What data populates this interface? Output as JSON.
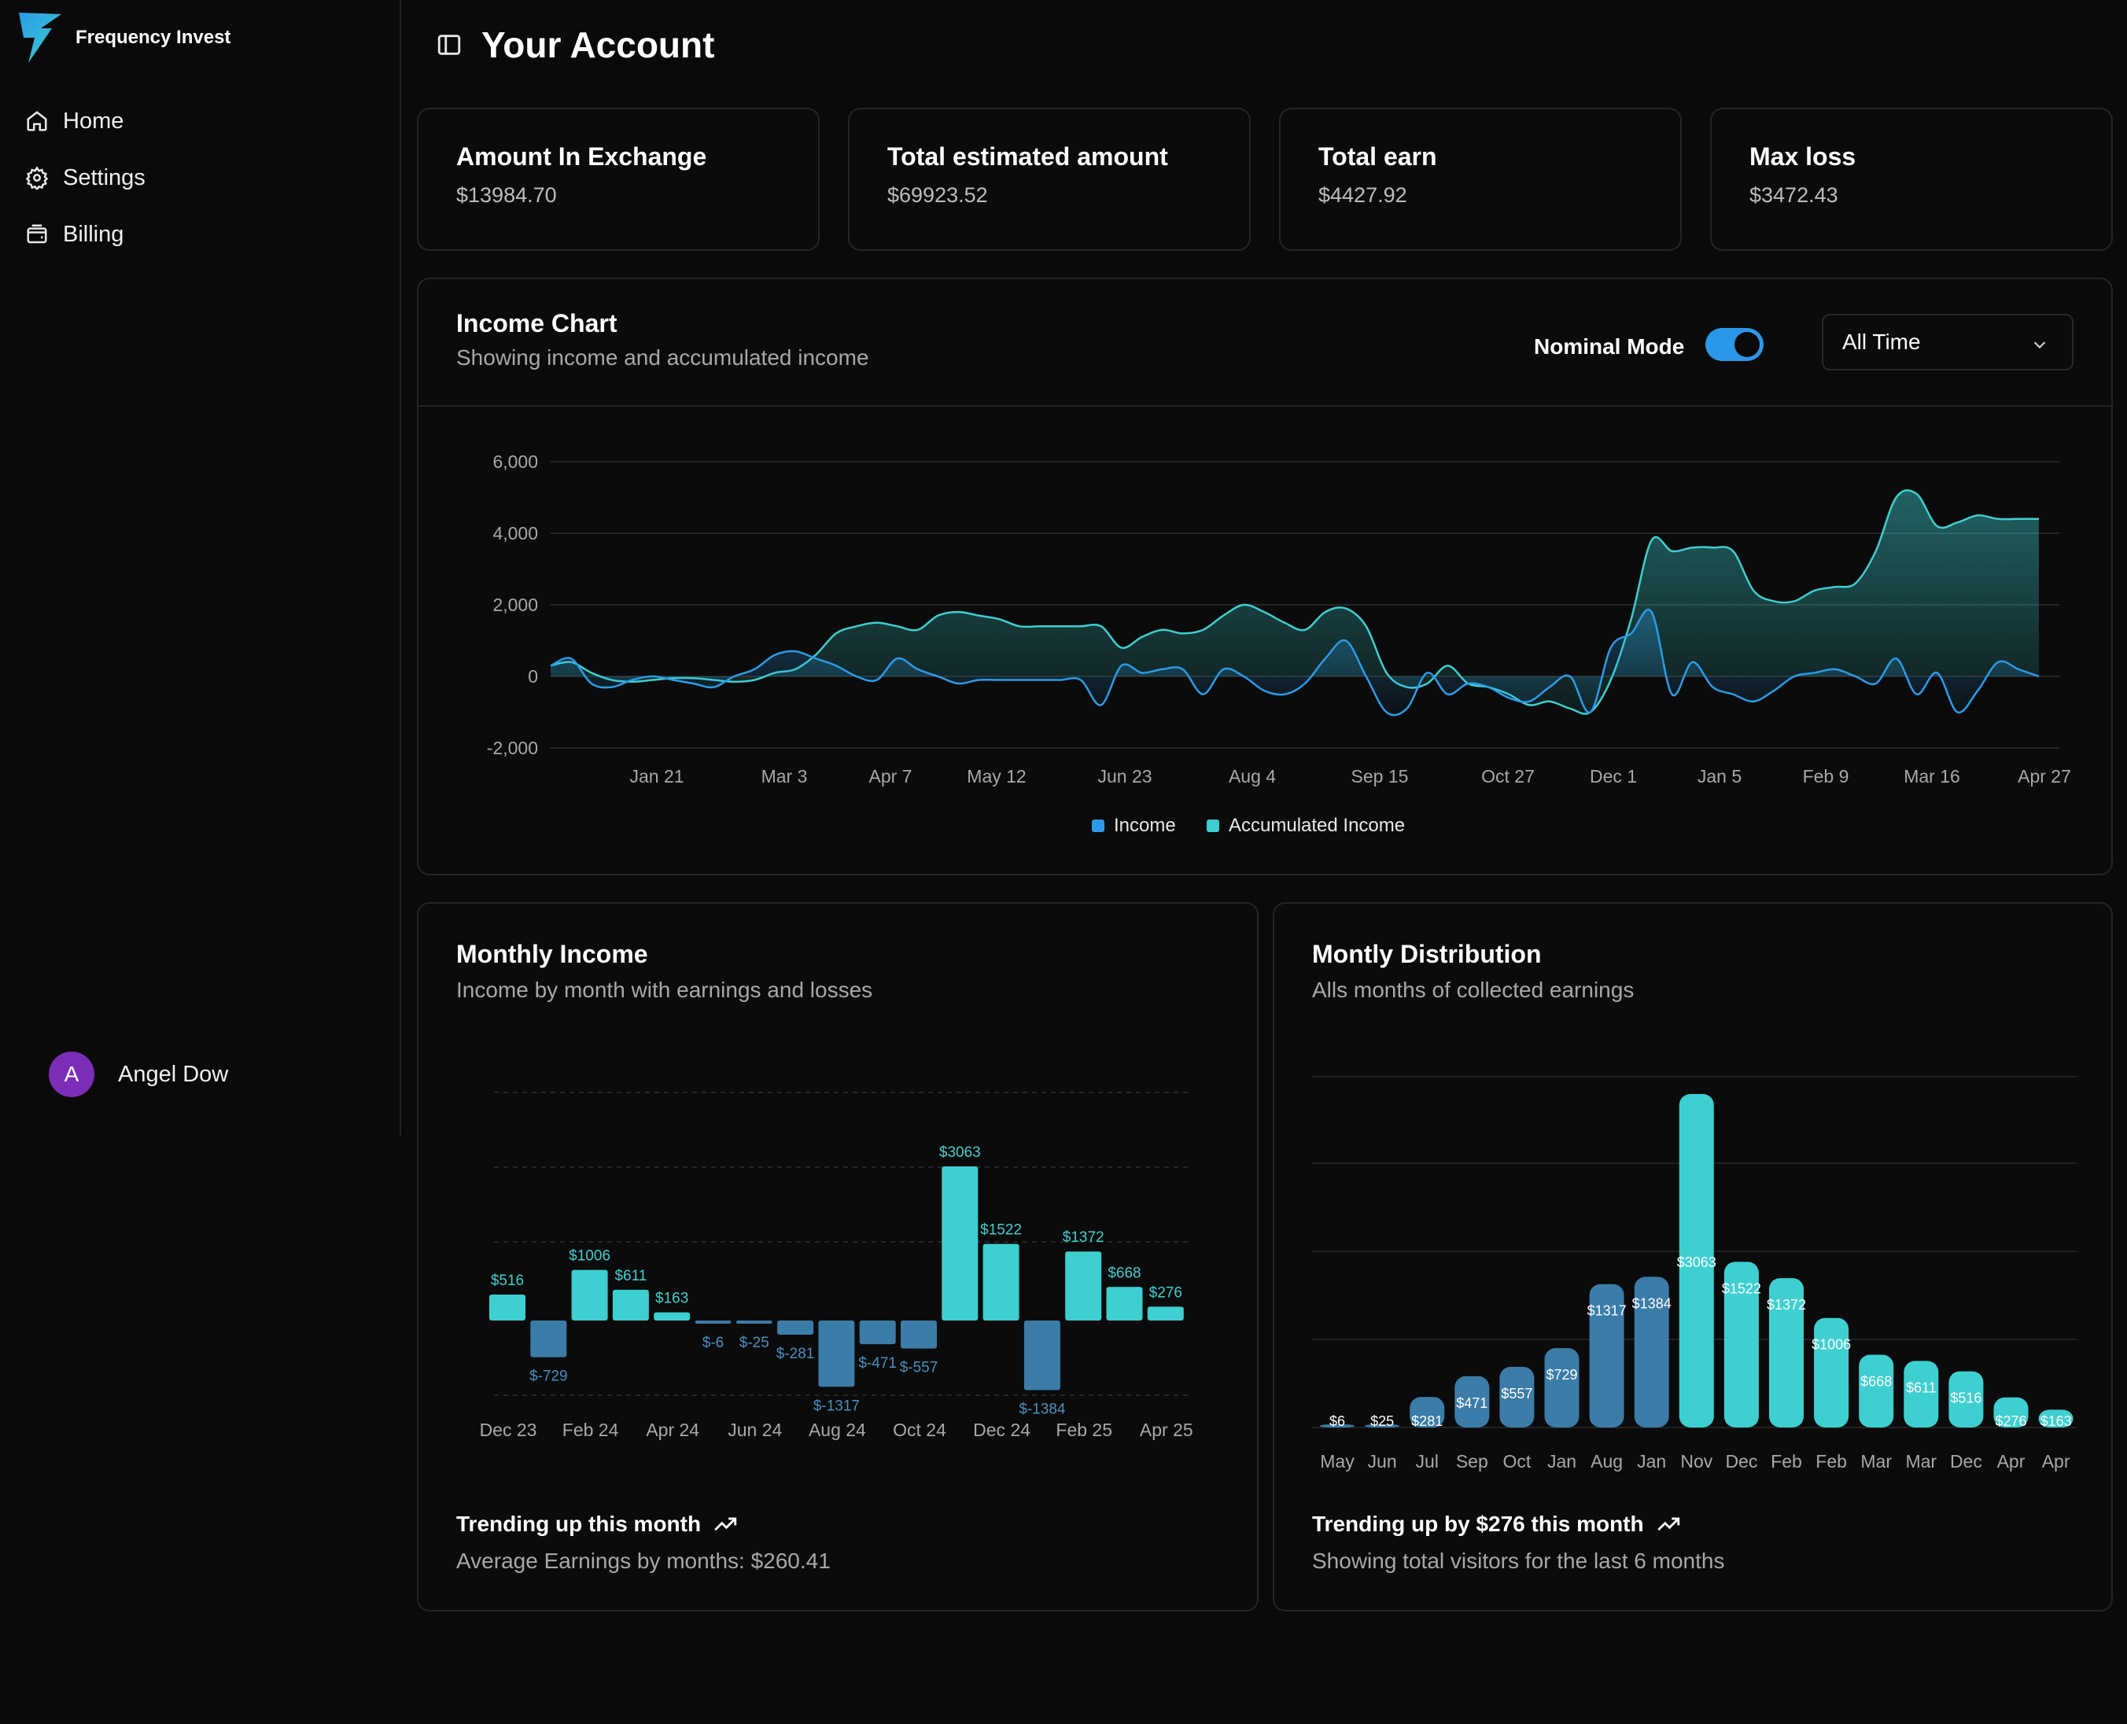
{
  "app": {
    "name": "Frequency Invest"
  },
  "nav": {
    "items": [
      {
        "label": "Home"
      },
      {
        "label": "Settings"
      },
      {
        "label": "Billing"
      }
    ]
  },
  "user": {
    "initial": "A",
    "name": "Angel Dow"
  },
  "page": {
    "title": "Your Account"
  },
  "stats": [
    {
      "title": "Amount In Exchange",
      "value": "$13984.70"
    },
    {
      "title": "Total estimated amount",
      "value": "$69923.52"
    },
    {
      "title": "Total earn",
      "value": "$4427.92"
    },
    {
      "title": "Max loss",
      "value": "$3472.43"
    }
  ],
  "income_card": {
    "title": "Income Chart",
    "subtitle": "Showing income and accumulated income",
    "toggle_label": "Nominal Mode",
    "toggle_on": true,
    "range_select": "All Time"
  },
  "monthly_card": {
    "title": "Monthly Income",
    "subtitle": "Income by month with earnings and losses",
    "trend": "Trending up this month",
    "footer": "Average Earnings by months: $260.41"
  },
  "dist_card": {
    "title": "Montly Distribution",
    "subtitle": "Alls months of collected earnings",
    "trend": "Trending up by $276 this month",
    "footer": "Showing total visitors for the last 6 months"
  },
  "colors": {
    "income": "#2b9be8",
    "accumulated": "#3ecfd0",
    "positive": "#3ecfd0",
    "negative": "#3b7ca8"
  },
  "chart_data": [
    {
      "type": "area",
      "title": "Income Chart",
      "ylim": [
        -2000,
        6000
      ],
      "yticks": [
        6000,
        4000,
        2000,
        0,
        -2000
      ],
      "ytick_labels": [
        "6,000",
        "4,000",
        "2,000",
        "0",
        "-2,000"
      ],
      "xtick_labels": [
        "Jan 21",
        "Mar 3",
        "Apr 7",
        "May 12",
        "Jun 23",
        "Aug 4",
        "Sep 15",
        "Oct 27",
        "Dec 1",
        "Jan 5",
        "Feb 9",
        "Mar 16",
        "Apr 27"
      ],
      "legend": [
        "Income",
        "Accumulated Income"
      ],
      "series": [
        {
          "name": "Accumulated Income",
          "values": [
            300,
            400,
            100,
            -100,
            -150,
            -100,
            -50,
            -50,
            -100,
            -150,
            -100,
            100,
            200,
            600,
            1200,
            1400,
            1500,
            1400,
            1300,
            1700,
            1800,
            1700,
            1600,
            1400,
            1400,
            1400,
            1400,
            1400,
            800,
            1100,
            1300,
            1200,
            1300,
            1700,
            2000,
            1800,
            1500,
            1300,
            1800,
            1900,
            1400,
            100,
            -300,
            -200,
            300,
            -200,
            -300,
            -500,
            -800,
            -700,
            -900,
            -1000,
            -100,
            1600,
            3800,
            3500,
            3600,
            3600,
            3500,
            2400,
            2100,
            2100,
            2400,
            2500,
            2600,
            3500,
            5000,
            5100,
            4200,
            4300,
            4500,
            4400,
            4400,
            4400
          ]
        },
        {
          "name": "Income",
          "values": [
            300,
            500,
            -200,
            -300,
            -100,
            0,
            -100,
            -200,
            -300,
            0,
            200,
            600,
            700,
            500,
            300,
            0,
            -100,
            500,
            200,
            0,
            -200,
            -100,
            -100,
            -100,
            -100,
            -100,
            -100,
            -800,
            300,
            100,
            200,
            200,
            -500,
            200,
            0,
            -400,
            -500,
            -200,
            500,
            1000,
            0,
            -1000,
            -900,
            100,
            -500,
            -200,
            -300,
            -600,
            -700,
            -300,
            0,
            -1000,
            800,
            1200,
            1800,
            -500,
            400,
            -300,
            -500,
            -700,
            -400,
            0,
            100,
            200,
            0,
            -200,
            500,
            -500,
            100,
            -1000,
            -400,
            400,
            200,
            0
          ]
        }
      ]
    },
    {
      "type": "bar",
      "title": "Monthly Income",
      "xtick_labels": [
        "Dec 23",
        "Feb 24",
        "Apr 24",
        "Jun 24",
        "Aug 24",
        "Oct 24",
        "Dec 24",
        "Feb 25",
        "Apr 25"
      ],
      "values": [
        516,
        -729,
        1006,
        611,
        163,
        -6,
        -25,
        -281,
        -1317,
        -471,
        -557,
        3063,
        1522,
        -1384,
        1372,
        668,
        276
      ],
      "labels": [
        "$516",
        "$-729",
        "$1006",
        "$611",
        "$163",
        "$-6",
        "$-25",
        "$-281",
        "$-1317",
        "$-471",
        "$-557",
        "$3063",
        "$1522",
        "$-1384",
        "$1372",
        "$668",
        "$276"
      ],
      "ylim": [
        -1500,
        4500
      ]
    },
    {
      "type": "bar",
      "title": "Montly Distribution",
      "categories": [
        "May",
        "Jun",
        "Jul",
        "Sep",
        "Oct",
        "Jan",
        "Aug",
        "Jan",
        "Nov",
        "Dec",
        "Feb",
        "Feb",
        "Mar",
        "Mar",
        "Dec",
        "Apr",
        "Apr"
      ],
      "values": [
        6,
        25,
        281,
        471,
        557,
        729,
        1317,
        1384,
        3063,
        1522,
        1372,
        1006,
        668,
        611,
        516,
        276,
        163
      ],
      "labels": [
        "$6",
        "$25",
        "$281",
        "$471",
        "$557",
        "$729",
        "$1317",
        "$1384",
        "$3063",
        "$1522",
        "$1372",
        "$1006",
        "$668",
        "$611",
        "$516",
        "$276",
        "$163"
      ],
      "kinds": [
        "neg",
        "neg",
        "neg",
        "neg",
        "neg",
        "neg",
        "neg",
        "neg",
        "pos",
        "pos",
        "pos",
        "pos",
        "pos",
        "pos",
        "pos",
        "pos",
        "pos"
      ],
      "ylim": [
        0,
        3200
      ]
    }
  ]
}
